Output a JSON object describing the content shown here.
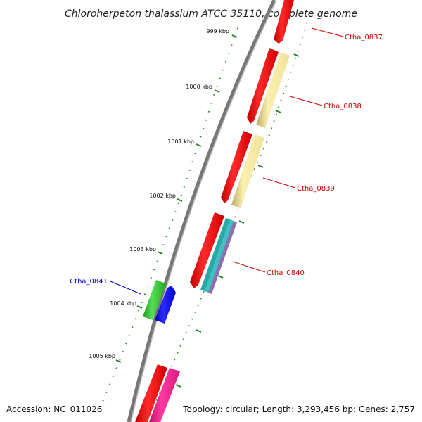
{
  "title": "Chloroherpeton thalassium ATCC 35110, complete genome",
  "footer": {
    "accession": "Accession: NC_011026",
    "summary": "Topology: circular; Length: 3,293,456 bp; Genes: 2,757"
  },
  "scale_ticks": [
    "999 kbp",
    "1000 kbp",
    "1001 kbp",
    "1002 kbp",
    "1003 kbp",
    "1004 kbp",
    "1005 kbp"
  ],
  "gene_labels": [
    {
      "text": "Ctha_0837",
      "color": "#cc0000"
    },
    {
      "text": "Ctha_0838",
      "color": "#cc0000"
    },
    {
      "text": "Ctha_0839",
      "color": "#cc0000"
    },
    {
      "text": "Ctha_0840",
      "color": "#cc0000"
    },
    {
      "text": "Ctha_0841",
      "color": "#0000cc"
    }
  ],
  "colors": {
    "backbone": "#777777",
    "cds": "#ee1111",
    "gene_feature": "#f2e49a",
    "teal_feature": "#2aa7a7",
    "purple_feature": "#8a70b0",
    "green_feature": "#33bb33",
    "blue_feature": "#1111dd",
    "magenta_feature": "#ee1a8a",
    "tick": "#228822"
  }
}
